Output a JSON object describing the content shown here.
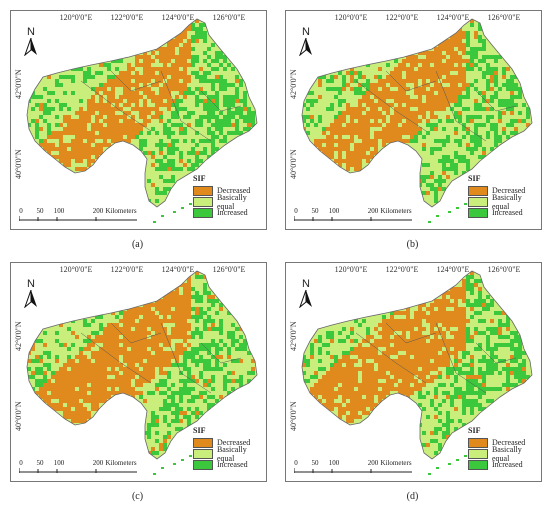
{
  "axes": {
    "lon_labels": [
      "120°0'0\"E",
      "122°0'0\"E",
      "124°0'0\"E",
      "126°0'0\"E"
    ],
    "lat_labels": [
      "42°0'0\"N",
      "40°0'0\"N"
    ]
  },
  "north_label": "N",
  "legend": {
    "title": "SIF",
    "items": [
      {
        "label": "Decreased",
        "color": "#e08a1e"
      },
      {
        "label": "Basically equal",
        "color": "#c9ee7c"
      },
      {
        "label": "Increased",
        "color": "#3cc83c"
      }
    ]
  },
  "scalebar": {
    "ticks": [
      "0",
      "50",
      "100",
      "200"
    ],
    "unit": "Kilometers"
  },
  "panels": [
    {
      "caption": "(a)",
      "decreased_share": 0.22
    },
    {
      "caption": "(b)",
      "decreased_share": 0.26
    },
    {
      "caption": "(c)",
      "decreased_share": 0.3
    },
    {
      "caption": "(d)",
      "decreased_share": 0.28
    }
  ]
}
